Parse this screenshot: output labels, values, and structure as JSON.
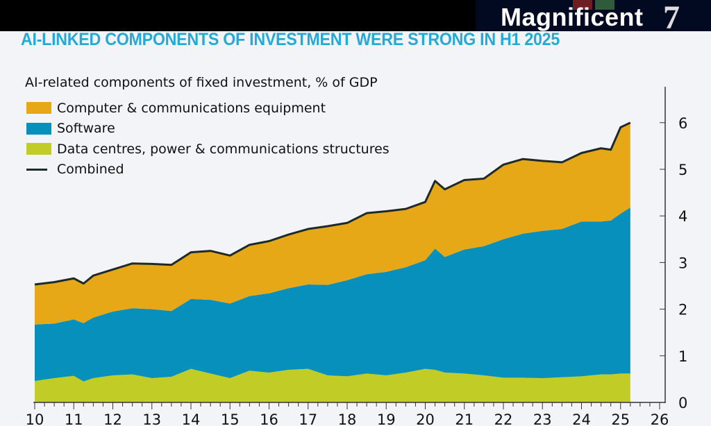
{
  "header": {
    "logo_text": "Magnificent",
    "logo_number": "7"
  },
  "chart_data": {
    "type": "area",
    "stacked": true,
    "title": "AI-LINKED COMPONENTS OF INVESTMENT WERE STRONG IN H1 2025",
    "subtitle": "AI-related components of fixed investment, % of GDP",
    "xlim": [
      10,
      26
    ],
    "ylim": [
      0,
      6.6
    ],
    "x_ticks": [
      "10",
      "11",
      "12",
      "13",
      "14",
      "15",
      "16",
      "17",
      "18",
      "19",
      "20",
      "21",
      "22",
      "23",
      "24",
      "25",
      "26"
    ],
    "y_ticks": [
      "0",
      "1",
      "2",
      "3",
      "4",
      "5",
      "6"
    ],
    "y_axis_side": "right",
    "grid": false,
    "legend_placement": "top-left",
    "x": [
      10,
      10.5,
      11,
      11.25,
      11.5,
      12,
      12.5,
      13,
      13.5,
      14,
      14.5,
      15,
      15.5,
      16,
      16.5,
      17,
      17.5,
      18,
      18.5,
      19,
      19.5,
      20,
      20.25,
      20.5,
      21,
      21.5,
      22,
      22.5,
      23,
      23.5,
      24,
      24.5,
      24.75,
      25,
      25.25
    ],
    "series": [
      {
        "name": "Data centres, power & communications structures",
        "color": "#c2cc26",
        "values": [
          0.46,
          0.52,
          0.57,
          0.45,
          0.52,
          0.58,
          0.6,
          0.52,
          0.55,
          0.72,
          0.62,
          0.52,
          0.68,
          0.64,
          0.7,
          0.72,
          0.58,
          0.56,
          0.62,
          0.58,
          0.64,
          0.72,
          0.7,
          0.64,
          0.62,
          0.58,
          0.53,
          0.53,
          0.52,
          0.54,
          0.56,
          0.6,
          0.6,
          0.62,
          0.62
        ]
      },
      {
        "name": "Software",
        "color": "#0790bb",
        "values": [
          1.21,
          1.17,
          1.21,
          1.25,
          1.3,
          1.37,
          1.42,
          1.48,
          1.41,
          1.5,
          1.58,
          1.6,
          1.6,
          1.7,
          1.75,
          1.81,
          1.94,
          2.06,
          2.13,
          2.22,
          2.26,
          2.33,
          2.6,
          2.48,
          2.66,
          2.77,
          2.97,
          3.09,
          3.16,
          3.18,
          3.32,
          3.28,
          3.3,
          3.43,
          3.56
        ]
      },
      {
        "name": "Computer & communications equipment",
        "color": "#e6a817",
        "values": [
          0.86,
          0.89,
          0.88,
          0.85,
          0.9,
          0.9,
          0.96,
          0.97,
          0.99,
          1.0,
          1.05,
          1.03,
          1.1,
          1.12,
          1.15,
          1.19,
          1.26,
          1.23,
          1.31,
          1.3,
          1.25,
          1.25,
          1.45,
          1.45,
          1.49,
          1.45,
          1.6,
          1.6,
          1.5,
          1.43,
          1.47,
          1.57,
          1.52,
          1.85,
          1.82
        ]
      }
    ],
    "combined": {
      "name": "Combined",
      "color": "#1e2a2a",
      "values": [
        2.53,
        2.58,
        2.66,
        2.55,
        2.72,
        2.85,
        2.98,
        2.97,
        2.95,
        3.22,
        3.25,
        3.15,
        3.38,
        3.46,
        3.6,
        3.72,
        3.78,
        3.85,
        4.06,
        4.1,
        4.15,
        4.3,
        4.75,
        4.57,
        4.77,
        4.8,
        5.1,
        5.22,
        5.18,
        5.15,
        5.35,
        5.45,
        5.42,
        5.9,
        6.0
      ]
    }
  }
}
